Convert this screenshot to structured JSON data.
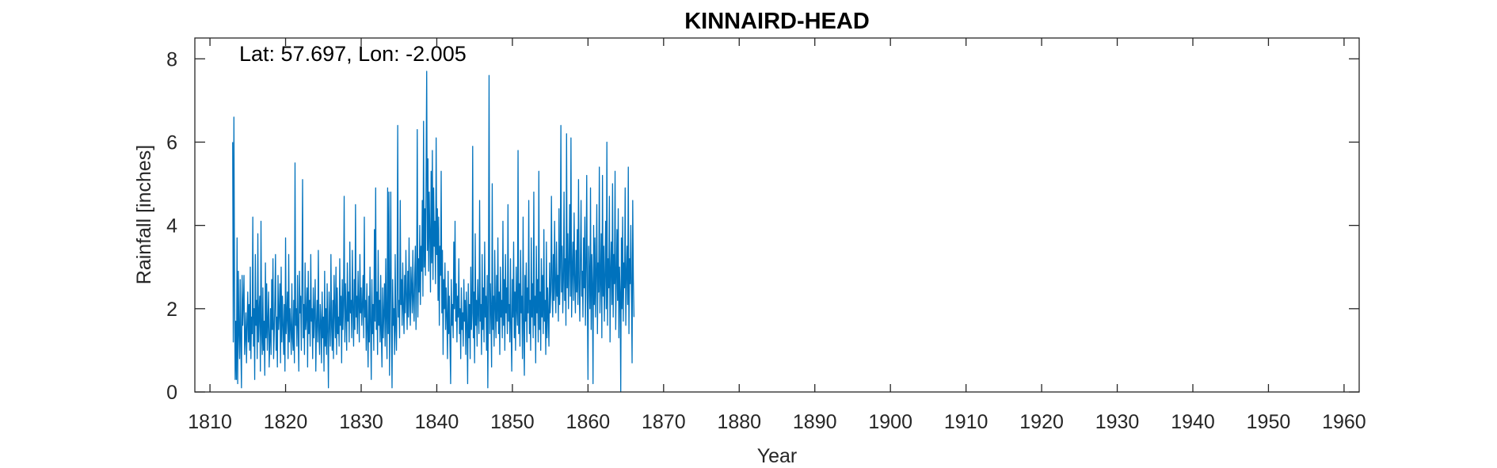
{
  "chart_data": {
    "type": "line",
    "title": "KINNAIRD-HEAD",
    "annotation": "Lat: 57.697, Lon: -2.005",
    "xlabel": "Year",
    "ylabel": "Rainfall [inches]",
    "xlim": [
      1808,
      1962
    ],
    "ylim": [
      0,
      8.5
    ],
    "xticks": [
      1810,
      1820,
      1830,
      1840,
      1850,
      1860,
      1870,
      1880,
      1890,
      1900,
      1910,
      1920,
      1930,
      1940,
      1950,
      1960
    ],
    "yticks": [
      0,
      2,
      4,
      6,
      8
    ],
    "grid": false,
    "colors": {
      "series": "#0072bd",
      "axis": "#262626"
    },
    "series": [
      {
        "x_start": 1813.0,
        "x_step": 0.08333,
        "values": [
          6.0,
          1.2,
          6.6,
          2.5,
          0.3,
          1.7,
          0.3,
          3.7,
          0.2,
          2.9,
          1.4,
          0.8,
          2.7,
          1.1,
          0.1,
          2.8,
          1.6,
          2.1,
          2.8,
          0.9,
          1.3,
          1.9,
          0.7,
          1.6,
          2.4,
          1.2,
          2.1,
          1.0,
          3.0,
          0.8,
          1.8,
          1.4,
          4.2,
          1.1,
          2.0,
          0.3,
          3.3,
          1.6,
          2.2,
          0.8,
          3.8,
          1.2,
          1.9,
          2.3,
          0.5,
          4.1,
          1.4,
          0.9,
          2.5,
          1.0,
          1.7,
          0.4,
          3.1,
          1.3,
          2.6,
          1.0,
          1.7,
          2.4,
          0.6,
          1.2,
          2.0,
          0.9,
          2.7,
          1.5,
          3.2,
          0.8,
          1.4,
          2.2,
          3.3,
          1.0,
          1.8,
          0.6,
          2.8,
          1.5,
          1.9,
          2.6,
          0.7,
          3.0,
          1.2,
          2.3,
          1.6,
          0.9,
          2.1,
          0.5,
          3.7,
          1.4,
          1.8,
          2.4,
          0.8,
          3.3,
          1.2,
          2.0,
          1.5,
          0.9,
          2.6,
          1.3,
          1.0,
          2.2,
          0.7,
          5.5,
          1.6,
          2.0,
          1.1,
          2.8,
          1.5,
          0.5,
          2.9,
          1.9,
          2.3,
          1.0,
          2.6,
          5.1,
          1.3,
          2.1,
          0.9,
          3.1,
          1.5,
          1.8,
          2.5,
          0.6,
          2.9,
          1.4,
          2.2,
          1.1,
          3.3,
          1.7,
          2.0,
          0.8,
          2.5,
          1.3,
          1.9,
          2.7,
          0.5,
          1.6,
          2.2,
          1.2,
          3.4,
          1.5,
          0.9,
          2.1,
          1.7,
          0.7,
          2.4,
          1.3,
          1.8,
          0.5,
          2.9,
          1.1,
          2.0,
          0.9,
          2.6,
          1.4,
          0.1,
          2.4,
          1.7,
          1.1,
          3.3,
          1.6,
          1.0,
          2.2,
          0.8,
          2.8,
          1.9,
          1.3,
          3.0,
          0.9,
          2.5,
          1.4,
          1.8,
          1.1,
          3.2,
          1.6,
          2.3,
          0.7,
          2.7,
          1.5,
          2.1,
          4.7,
          1.2,
          2.6,
          1.8,
          1.0,
          3.1,
          1.7,
          2.4,
          1.2,
          3.6,
          1.9,
          2.2,
          1.3,
          3.4,
          2.0,
          1.1,
          2.7,
          1.5,
          4.5,
          1.8,
          2.3,
          1.4,
          2.9,
          2.1,
          1.2,
          3.3,
          1.9,
          2.5,
          1.6,
          2.1,
          2.8,
          1.3,
          4.2,
          1.8,
          2.2,
          1.0,
          2.6,
          1.5,
          0.6,
          2.3,
          1.2,
          3.0,
          1.6,
          0.3,
          2.7,
          1.4,
          2.1,
          1.0,
          3.9,
          1.7,
          4.9,
          1.5,
          2.4,
          0.9,
          3.4,
          1.6,
          2.2,
          1.2,
          2.8,
          1.4,
          0.6,
          2.5,
          1.3,
          1.9,
          2.6,
          1.1,
          3.2,
          1.7,
          0.8,
          4.9,
          1.4,
          4.8,
          0.4,
          2.3,
          4.8,
          1.5,
          0.1,
          2.7,
          1.6,
          2.0,
          0.9,
          3.3,
          1.5,
          1.0,
          2.4,
          6.4,
          1.8,
          2.2,
          1.3,
          4.6,
          2.1,
          2.7,
          1.6,
          3.1,
          2.0,
          1.4,
          2.8,
          1.9,
          3.4,
          2.3,
          1.5,
          2.9,
          1.8,
          3.7,
          2.2,
          1.6,
          3.0,
          2.5,
          1.9,
          3.4,
          2.2,
          1.7,
          2.8,
          3.5,
          1.5,
          2.6,
          6.3,
          1.8,
          3.2,
          2.4,
          4.0,
          2.1,
          3.5,
          2.9,
          4.6,
          2.3,
          6.5,
          3.0,
          4.4,
          2.8,
          5.2,
          7.7,
          3.4,
          5.6,
          2.9,
          4.8,
          3.8,
          2.4,
          5.3,
          3.1,
          5.8,
          2.7,
          4.9,
          3.5,
          4.1,
          2.6,
          6.1,
          3.3,
          4.4,
          2.2,
          4.2,
          1.6,
          3.5,
          2.8,
          5.3,
          1.9,
          3.4,
          0.9,
          2.7,
          2.0,
          3.1,
          1.5,
          2.5,
          1.8,
          0.8,
          2.9,
          1.4,
          2.3,
          1.1,
          0.2,
          2.7,
          1.6,
          2.1,
          1.3,
          3.6,
          2.0,
          4.1,
          1.7,
          2.6,
          1.2,
          2.3,
          1.8,
          3.2,
          1.4,
          2.0,
          0.8,
          2.5,
          1.5,
          1.9,
          1.1,
          2.7,
          1.7,
          2.2,
          0.9,
          2.4,
          1.6,
          0.2,
          2.6,
          1.3,
          2.1,
          0.8,
          3.0,
          1.5,
          1.9,
          5.9,
          1.3,
          2.4,
          0.7,
          3.8,
          1.6,
          2.2,
          1.1,
          2.7,
          1.9,
          1.4,
          4.6,
          1.7,
          2.1,
          0.9,
          3.3,
          1.5,
          2.5,
          1.2,
          3.6,
          1.8,
          2.3,
          1.0,
          2.8,
          0.1,
          2.2,
          7.6,
          1.4,
          2.6,
          1.9,
          0.6,
          5.0,
          1.5,
          2.3,
          1.1,
          3.4,
          2.0,
          1.3,
          2.8,
          1.7,
          3.7,
          1.4,
          2.4,
          0.9,
          3.0,
          1.8,
          2.2,
          1.3,
          4.1,
          1.6,
          2.7,
          1.0,
          3.3,
          1.9,
          2.5,
          1.4,
          4.5,
          1.7,
          2.1,
          1.2,
          3.2,
          1.5,
          0.5,
          2.7,
          1.8,
          3.6,
          1.3,
          2.4,
          1.0,
          3.0,
          2.0,
          1.6,
          5.8,
          1.4,
          2.6,
          1.1,
          3.4,
          1.9,
          2.3,
          0.8,
          4.2,
          1.5,
          0.4,
          2.8,
          1.7,
          3.1,
          1.2,
          2.5,
          1.9,
          4.6,
          1.4,
          2.2,
          1.0,
          3.7,
          1.8,
          2.6,
          1.3,
          4.8,
          1.6,
          2.3,
          0.7,
          3.5,
          1.9,
          2.7,
          1.2,
          5.3,
          1.5,
          2.4,
          1.0,
          3.2,
          1.8,
          2.8,
          1.4,
          3.9,
          1.7,
          2.2,
          0.9,
          3.6,
          1.3,
          2.5,
          1.8,
          1.1,
          3.1,
          1.9,
          2.4,
          4.7,
          2.6,
          1.8,
          3.3,
          2.2,
          4.1,
          2.5,
          1.9,
          3.6,
          2.3,
          2.8,
          1.7,
          4.4,
          2.1,
          3.0,
          6.4,
          2.4,
          3.5,
          1.9,
          2.7,
          4.8,
          2.2,
          3.2,
          1.6,
          6.2,
          2.5,
          3.8,
          2.0,
          3.1,
          4.5,
          2.3,
          6.1,
          1.8,
          2.9,
          3.6,
          2.2,
          4.3,
          2.7,
          1.9,
          3.4,
          2.4,
          3.9,
          2.1,
          5.1,
          2.6,
          1.7,
          3.2,
          4.6,
          2.3,
          2.9,
          1.8,
          3.7,
          2.5,
          4.2,
          1.6,
          3.0,
          5.2,
          2.2,
          0.3,
          3.5,
          2.8,
          2.0,
          4.9,
          1.5,
          3.3,
          2.6,
          0.2,
          4.0,
          2.1,
          3.7,
          1.8,
          2.9,
          4.5,
          1.4,
          3.1,
          2.4,
          5.4,
          1.9,
          2.7,
          3.8,
          1.3,
          5.2,
          2.3,
          3.5,
          1.7,
          2.8,
          4.1,
          2.0,
          6.0,
          1.6,
          3.2,
          2.5,
          4.7,
          1.2,
          2.9,
          3.6,
          2.1,
          5.0,
          1.8,
          3.3,
          2.6,
          5.3,
          1.5,
          2.7,
          3.9,
          2.2,
          4.4,
          1.3,
          3.0,
          2.4,
          0.0,
          3.7,
          2.0,
          4.2,
          1.7,
          3.1,
          2.5,
          4.9,
          1.6,
          2.8,
          3.5,
          2.1,
          5.4,
          1.4,
          3.2,
          2.6,
          4.0,
          2.3,
          0.7,
          4.6,
          2.7,
          1.8
        ]
      }
    ]
  }
}
